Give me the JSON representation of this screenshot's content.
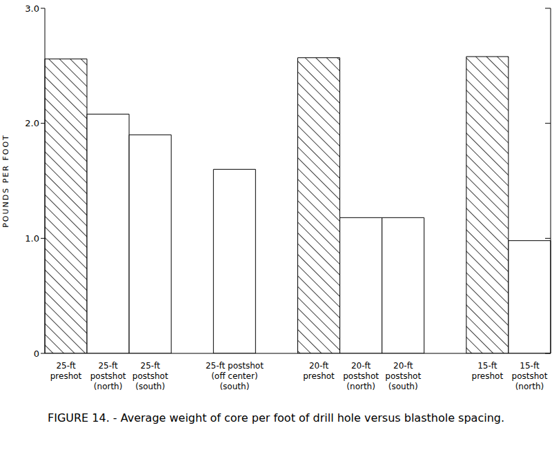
{
  "chart_data": {
    "type": "bar",
    "title": "FIGURE 14. - Average weight of core per foot of drill hole versus blasthole spacing.",
    "y_label": "POUNDS PER FOOT",
    "categories": [
      "25-ft\npreshot",
      "25-ft\npostshot\n(north)",
      "25-ft\npostshot\n(south)",
      null,
      "25-ft postshot\n(off center)\n(south)",
      null,
      "20-ft\npreshot",
      "20-ft\npostshot\n(north)",
      "20-ft\npostshot\n(south)",
      null,
      "15-ft\npreshot",
      "15-ft\npostshot\n(north)"
    ],
    "values": [
      2.56,
      2.08,
      1.9,
      null,
      1.6,
      null,
      2.57,
      1.18,
      1.18,
      null,
      2.58,
      0.98
    ],
    "colors": [
      "#000000",
      "#ffffff",
      "#ffffff",
      "#ffffff",
      "#ffffff",
      "#ffffff",
      "#000000",
      "#ffffff",
      "#ffffff",
      "#ffffff",
      "#000000",
      "#ffffff"
    ],
    "ylim": [
      0,
      3
    ],
    "yticks": [
      0,
      {
        "value": 1,
        "label": "1.0"
      },
      {
        "value": 2,
        "label": "2.0"
      },
      {
        "value": 3,
        "label": "3.0"
      }
    ],
    "grid": false
  }
}
